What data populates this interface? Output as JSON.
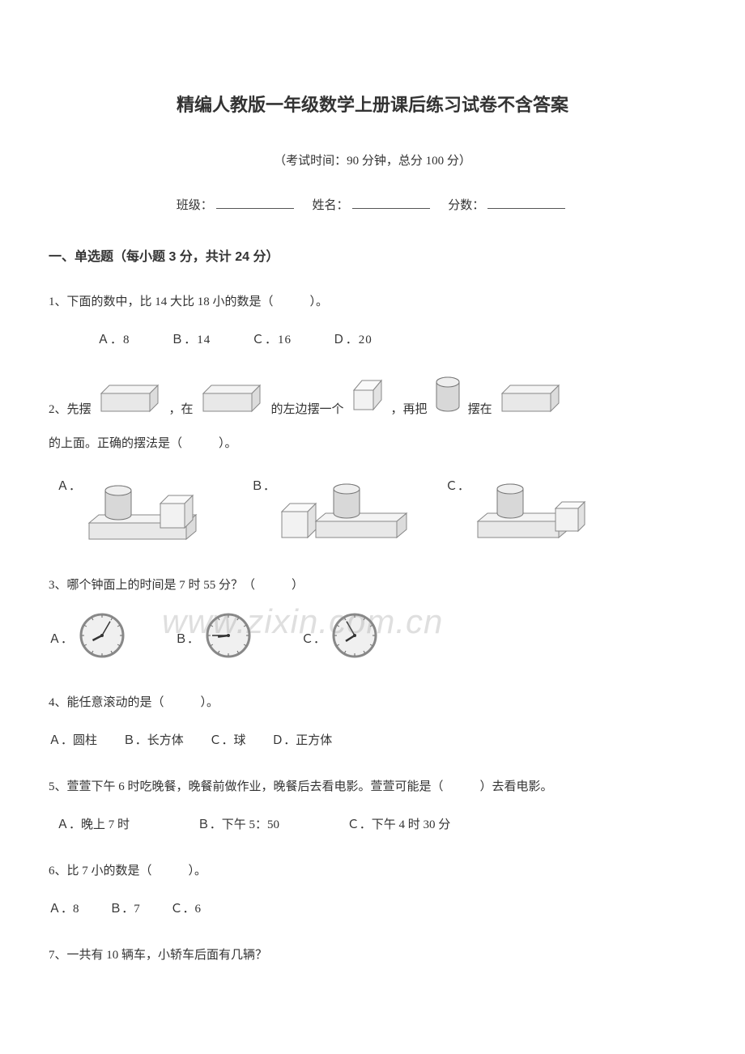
{
  "title": "精编人教版一年级数学上册课后练习试卷不含答案",
  "meta": "（考试时间：90 分钟，总分 100 分）",
  "blanks": {
    "class_l": "班级：",
    "name_l": "姓名：",
    "score_l": "分数："
  },
  "section1": "一、单选题（每小题 3 分，共计 24 分）",
  "q1": {
    "stem": "1、下面的数中，比 14 大比 18 小的数是（　　　）。",
    "opts": [
      "Ａ．8",
      "Ｂ．14",
      "Ｃ．16",
      "Ｄ．20"
    ]
  },
  "q2": {
    "p1": "2、先摆",
    "p2": "，在",
    "p3": "的左边摆一个",
    "p4": "，再把",
    "p5": "摆在",
    "p6": "的上面。正确的摆法是（　　　）。",
    "optA": "Ａ．",
    "optB": "Ｂ．",
    "optC": "Ｃ．",
    "shape_colors": {
      "cuboid_fill": "#e8e8e8",
      "cuboid_stroke": "#888",
      "cube_fill": "#f2f2f2",
      "cube_stroke": "#888",
      "cyl_fill": "#d8d8d8",
      "cyl_stroke": "#777"
    }
  },
  "q3": {
    "stem": "3、哪个钟面上的时间是 7 时 55 分？（　　　）",
    "optA": "Ａ．",
    "optB": "Ｂ．",
    "optC": "Ｃ．",
    "clock": {
      "face": "#f0f0f0",
      "ring": "#888",
      "hand": "#333"
    },
    "times": [
      {
        "h": 8,
        "m": 5
      },
      {
        "h": 8,
        "m": 45
      },
      {
        "h": 7,
        "m": 55
      }
    ]
  },
  "q4": {
    "stem": "4、能任意滚动的是（　　　）。",
    "opts": [
      "Ａ．圆柱",
      "Ｂ．长方体",
      "Ｃ．球",
      "Ｄ．正方体"
    ]
  },
  "q5": {
    "stem": "5、萱萱下午 6 时吃晚餐，晚餐前做作业，晚餐后去看电影。萱萱可能是（　　　）去看电影。",
    "opts": [
      "Ａ．晚上 7 时",
      "Ｂ．下午 5：50",
      "Ｃ．下午 4 时 30 分"
    ]
  },
  "q6": {
    "stem": "6、比 7 小的数是（　　　）。",
    "opts": [
      "Ａ．8",
      "Ｂ．7",
      "Ｃ．6"
    ]
  },
  "q7": {
    "stem": "7、一共有 10 辆车，小轿车后面有几辆？"
  },
  "watermark": "www.zixin.com.cn"
}
